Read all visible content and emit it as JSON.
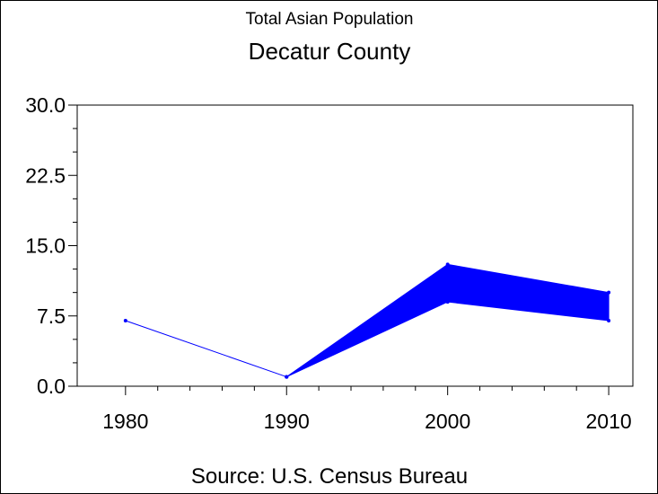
{
  "chart_data": {
    "type": "line",
    "subtitle": "Total Asian Population",
    "title": "Decatur County",
    "source": "Source: U.S. Census Bureau",
    "xlabel": "",
    "ylabel": "",
    "x_ticks": [
      "1980",
      "1990",
      "2000",
      "2010"
    ],
    "y_ticks": [
      "0.0",
      "7.5",
      "15.0",
      "22.5",
      "30.0"
    ],
    "xlim": [
      1977,
      2011.5
    ],
    "ylim": [
      0,
      30
    ],
    "grid": false,
    "colors": {
      "series": "#0000ff",
      "axis": "#000000"
    },
    "series": [
      {
        "x": [
          1980,
          1990
        ],
        "values": [
          7,
          1
        ]
      }
    ],
    "band": {
      "x": [
        1990,
        2000,
        2010
      ],
      "upper": [
        1,
        13,
        10
      ],
      "lower": [
        1,
        9,
        7
      ]
    }
  }
}
